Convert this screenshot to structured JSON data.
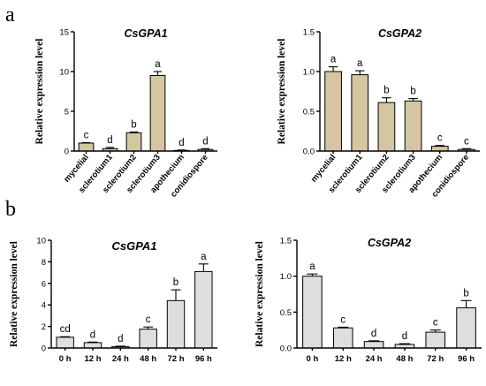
{
  "panels": [
    {
      "letter": "a"
    },
    {
      "letter": "b"
    }
  ],
  "colors": {
    "bar_a": "#d3c6a0",
    "bar_b": "#dedede",
    "stroke": "#000000"
  },
  "chart_data": [
    {
      "type": "bar",
      "title": "CsGPA1",
      "ylabel": "Relative expression level",
      "xlabel": "",
      "ylim": [
        0,
        15
      ],
      "yticks": [
        "0",
        "5",
        "10",
        "15"
      ],
      "ytick_values": [
        0,
        5,
        10,
        15
      ],
      "categories": [
        "mycelial",
        "sclerotium1",
        "sclerotium2",
        "sclerotium3",
        "apothecium",
        "conidiospore"
      ],
      "values": [
        1.0,
        0.3,
        2.3,
        9.5,
        0.08,
        0.2
      ],
      "errors": [
        0.05,
        0.15,
        0.1,
        0.5,
        0.05,
        0.1
      ],
      "significance": [
        "c",
        "d",
        "b",
        "a",
        "d",
        "d"
      ]
    },
    {
      "type": "bar",
      "title": "CsGPA2",
      "ylabel": "Relative expression level",
      "xlabel": "",
      "ylim": [
        0,
        1.5
      ],
      "yticks": [
        "0.0",
        "0.5",
        "1.0",
        "1.5"
      ],
      "ytick_values": [
        0,
        0.5,
        1.0,
        1.5
      ],
      "categories": [
        "mycelial",
        "sclerotium1",
        "sclerotium2",
        "sclerotium3",
        "apothecium",
        "conidiospore"
      ],
      "values": [
        1.0,
        0.96,
        0.61,
        0.63,
        0.06,
        0.02
      ],
      "errors": [
        0.06,
        0.05,
        0.06,
        0.03,
        0.01,
        0.01
      ],
      "significance": [
        "a",
        "a",
        "b",
        "b",
        "c",
        "c"
      ]
    },
    {
      "type": "bar",
      "title": "CsGPA1",
      "ylabel": "Relative expression level",
      "xlabel": "",
      "ylim": [
        0,
        10
      ],
      "yticks": [
        "0",
        "2",
        "4",
        "6",
        "8",
        "10"
      ],
      "ytick_values": [
        0,
        2,
        4,
        6,
        8,
        10
      ],
      "categories": [
        "0 h",
        "12 h",
        "24 h",
        "48 h",
        "72 h",
        "96 h"
      ],
      "values": [
        1.0,
        0.5,
        0.12,
        1.75,
        4.4,
        7.1
      ],
      "errors": [
        0.05,
        0.05,
        0.05,
        0.2,
        1.0,
        0.7
      ],
      "significance": [
        "cd",
        "d",
        "d",
        "c",
        "b",
        "a"
      ]
    },
    {
      "type": "bar",
      "title": "CsGPA2",
      "ylabel": "Relative expression level",
      "xlabel": "",
      "ylim": [
        0,
        1.5
      ],
      "yticks": [
        "0.0",
        "0.5",
        "1.0",
        "1.5"
      ],
      "ytick_values": [
        0,
        0.5,
        1.0,
        1.5
      ],
      "categories": [
        "0 h",
        "12 h",
        "24 h",
        "48 h",
        "72 h",
        "96 h"
      ],
      "values": [
        1.0,
        0.28,
        0.09,
        0.05,
        0.22,
        0.56
      ],
      "errors": [
        0.03,
        0.01,
        0.01,
        0.01,
        0.03,
        0.1
      ],
      "significance": [
        "a",
        "c",
        "d",
        "d",
        "c",
        "b"
      ]
    }
  ]
}
